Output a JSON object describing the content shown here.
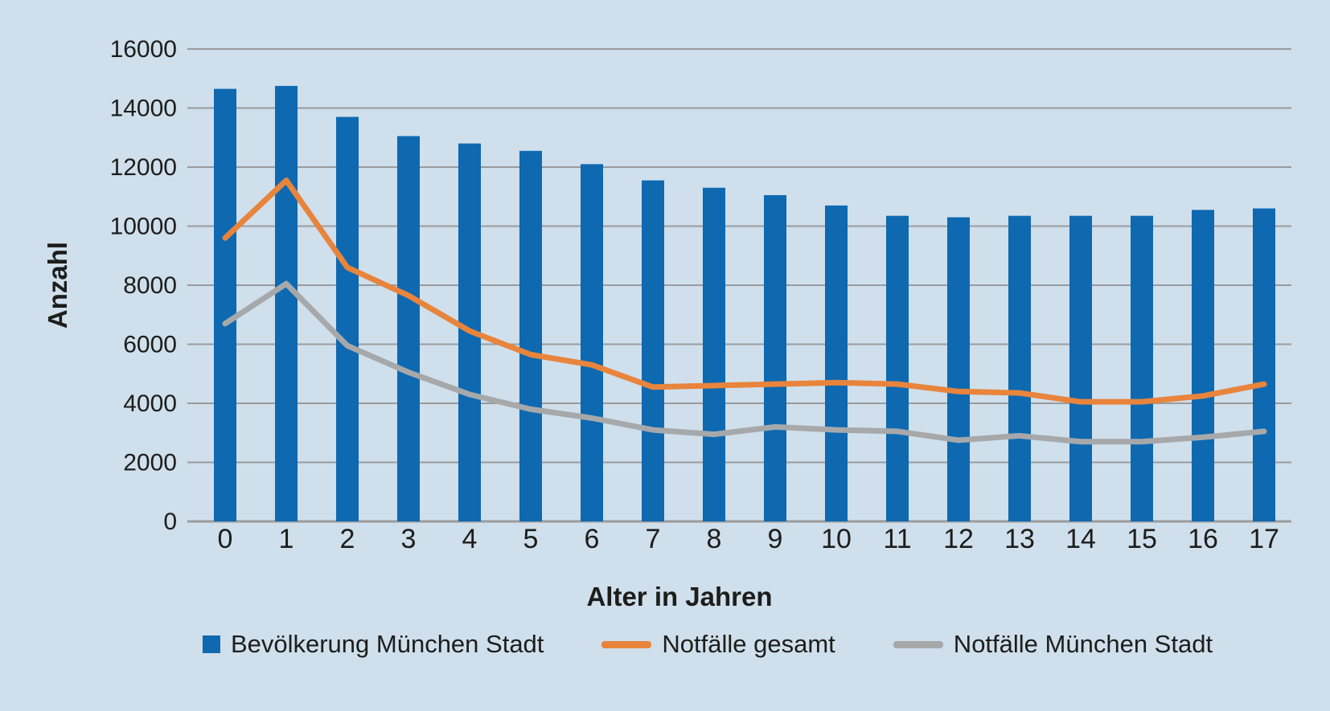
{
  "page": {
    "background_color": "#cfdfec",
    "text_color": "#1d1d1b"
  },
  "chart_data": {
    "type": "bar",
    "subtype": "bar-with-lines-overlay",
    "title": "",
    "xlabel": "Alter in Jahren",
    "ylabel": "Anzahl",
    "categories": [
      "0",
      "1",
      "2",
      "3",
      "4",
      "5",
      "6",
      "7",
      "8",
      "9",
      "10",
      "11",
      "12",
      "13",
      "14",
      "15",
      "16",
      "17"
    ],
    "ylim": [
      0,
      16000
    ],
    "ytick_step": 2000,
    "yticks": [
      "0",
      "2000",
      "4000",
      "6000",
      "8000",
      "10000",
      "12000",
      "14000",
      "16000"
    ],
    "grid": true,
    "gridline_color": "#9b9b9b",
    "legend_position": "bottom",
    "series": [
      {
        "name": "Bevölkerung München Stadt",
        "type": "bar",
        "color": "#0e69b1",
        "values": [
          14650,
          14750,
          13700,
          13050,
          12800,
          12550,
          12100,
          11550,
          11300,
          11050,
          10700,
          10350,
          10300,
          10350,
          10350,
          10350,
          10550,
          10600
        ]
      },
      {
        "name": "Notfälle gesamt",
        "type": "line",
        "color": "#e8843c",
        "values": [
          9600,
          11550,
          8600,
          7650,
          6450,
          5650,
          5300,
          4550,
          4600,
          4650,
          4700,
          4650,
          4400,
          4350,
          4050,
          4050,
          4250,
          4650
        ]
      },
      {
        "name": "Notfälle München Stadt",
        "type": "line",
        "color": "#a6a8aa",
        "values": [
          6700,
          8050,
          5950,
          5050,
          4300,
          3800,
          3500,
          3100,
          2950,
          3200,
          3100,
          3050,
          2750,
          2900,
          2700,
          2700,
          2850,
          3050
        ]
      }
    ]
  }
}
